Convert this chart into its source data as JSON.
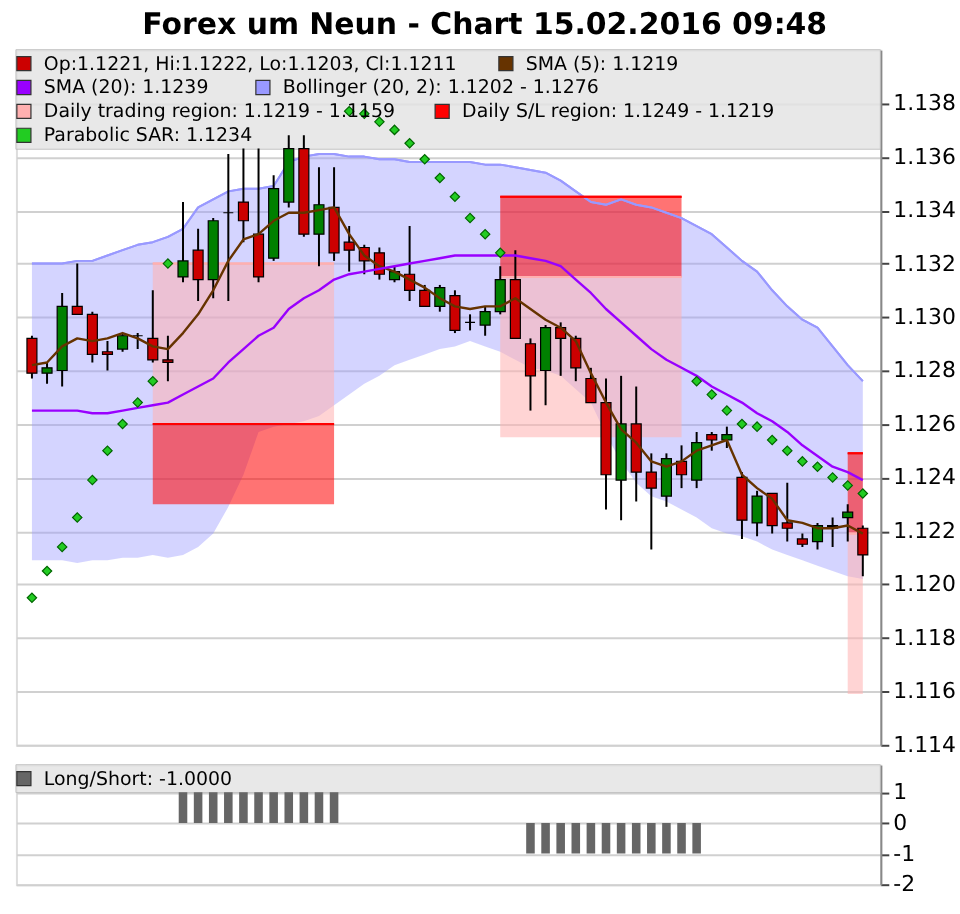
{
  "chart_data": [
    {
      "type": "candlestick",
      "title": "Forex um Neun - Chart 15.02.2016 09:48",
      "categories": [
        null,
        null,
        null,
        null,
        null,
        null,
        null,
        null,
        null,
        null,
        null,
        null,
        null,
        null,
        null,
        null,
        null,
        null,
        null,
        null,
        null,
        null,
        null,
        null,
        null,
        null,
        null,
        null,
        null,
        null,
        null,
        null,
        null,
        null,
        null,
        null,
        null,
        null,
        null,
        null,
        null,
        null,
        null,
        null,
        null,
        null,
        null,
        null,
        null,
        null,
        null,
        null,
        null,
        null,
        null,
        null
      ],
      "ylim": [
        1.114,
        1.14
      ],
      "yticks": [
        1.114,
        1.116,
        1.118,
        {
          "value": 1.12,
          "label": "1.120"
        },
        1.122,
        1.124,
        1.126,
        1.128,
        {
          "value": 1.13,
          "label": "1.130"
        },
        1.132,
        1.134,
        1.136,
        1.138
      ],
      "grid": "y",
      "legend": "top",
      "tick_labels": "y",
      "series": [
        {
          "name": "Op:1.1221, Hi:1.1222, Lo:1.1203, Cl:1.1211",
          "type": "candlestick",
          "color": "#cc0000",
          "colors": [
            "#cc0000",
            "#008000",
            "#008000",
            "#cc0000",
            "#cc0000",
            "#cc0000",
            "#008000",
            "#000000",
            "#cc0000",
            "#cc0000",
            "#008000",
            "#cc0000",
            "#008000",
            "#000000",
            "#cc0000",
            "#cc0000",
            "#008000",
            "#008000",
            "#cc0000",
            "#008000",
            "#cc0000",
            "#cc0000",
            "#cc0000",
            "#cc0000",
            "#008000",
            "#cc0000",
            "#cc0000",
            "#008000",
            "#cc0000",
            "#000000",
            "#008000",
            "#008000",
            "#cc0000",
            "#cc0000",
            "#008000",
            "#cc0000",
            "#cc0000",
            "#cc0000",
            "#cc0000",
            "#008000",
            "#cc0000",
            "#cc0000",
            "#008000",
            "#cc0000",
            "#008000",
            "#cc0000",
            "#008000",
            "#cc0000",
            "#008000",
            "#cc0000",
            "#cc0000",
            "#cc0000",
            "#008000",
            "#000000",
            "#008000",
            "#cc0000"
          ],
          "ohlc": [
            [
              1.1292,
              1.1293,
              1.1277,
              1.1279
            ],
            [
              1.1279,
              1.1283,
              1.1275,
              1.1281
            ],
            [
              1.128,
              1.1309,
              1.1274,
              1.1304
            ],
            [
              1.1304,
              1.132,
              1.1301,
              1.1301
            ],
            [
              1.1301,
              1.1302,
              1.1283,
              1.1286
            ],
            [
              1.1287,
              1.1291,
              1.128,
              1.1286
            ],
            [
              1.1288,
              1.1294,
              1.1287,
              1.1293
            ],
            [
              1.1293,
              1.1294,
              1.1288,
              1.1293
            ],
            [
              1.1292,
              1.131,
              1.1283,
              1.1284
            ],
            [
              1.1284,
              1.1293,
              1.1276,
              1.1283
            ],
            [
              1.1315,
              1.1343,
              1.1313,
              1.1321
            ],
            [
              1.1325,
              1.1333,
              1.1306,
              1.1314
            ],
            [
              1.1314,
              1.1337,
              1.1307,
              1.1336
            ],
            [
              1.1339,
              1.1361,
              1.1306,
              1.1339
            ],
            [
              1.1343,
              1.1363,
              1.1328,
              1.1336
            ],
            [
              1.1331,
              1.1363,
              1.1313,
              1.1315
            ],
            [
              1.1322,
              1.1353,
              1.1321,
              1.1348
            ],
            [
              1.1343,
              1.1368,
              1.1341,
              1.1363
            ],
            [
              1.1363,
              1.1368,
              1.133,
              1.1331
            ],
            [
              1.1331,
              1.1356,
              1.1319,
              1.1342
            ],
            [
              1.1341,
              1.1356,
              1.1321,
              1.1324
            ],
            [
              1.1328,
              1.1334,
              1.1317,
              1.1325
            ],
            [
              1.1326,
              1.1327,
              1.1316,
              1.1321
            ],
            [
              1.1324,
              1.1326,
              1.1314,
              1.1316
            ],
            [
              1.1314,
              1.1319,
              1.1313,
              1.1317
            ],
            [
              1.1316,
              1.1334,
              1.1306,
              1.131
            ],
            [
              1.131,
              1.1312,
              1.1304,
              1.1304
            ],
            [
              1.1304,
              1.1312,
              1.1302,
              1.1311
            ],
            [
              1.1308,
              1.131,
              1.1294,
              1.1295
            ],
            [
              1.1298,
              1.1301,
              1.1295,
              1.1298
            ],
            [
              1.1297,
              1.1304,
              1.1293,
              1.1302
            ],
            [
              1.1302,
              1.1319,
              1.1301,
              1.1314
            ],
            [
              1.1314,
              1.1325,
              1.1292,
              1.1292
            ],
            [
              1.129,
              1.1292,
              1.1265,
              1.1278
            ],
            [
              1.128,
              1.1297,
              1.1267,
              1.1296
            ],
            [
              1.1296,
              1.1298,
              1.1278,
              1.1292
            ],
            [
              1.1292,
              1.1293,
              1.1276,
              1.1281
            ],
            [
              1.1277,
              1.1281,
              1.1268,
              1.1268
            ],
            [
              1.1268,
              1.1277,
              1.1228,
              1.1241
            ],
            [
              1.1239,
              1.1278,
              1.1224,
              1.126
            ],
            [
              1.126,
              1.1274,
              1.1231,
              1.1242
            ],
            [
              1.1242,
              1.1249,
              1.1213,
              1.1236
            ],
            [
              1.1233,
              1.1249,
              1.1229,
              1.1247
            ],
            [
              1.1246,
              1.1252,
              1.1236,
              1.1241
            ],
            [
              1.1239,
              1.1257,
              1.1236,
              1.1253
            ],
            [
              1.1256,
              1.1257,
              1.125,
              1.1254
            ],
            [
              1.1254,
              1.1259,
              1.1251,
              1.1256
            ],
            [
              1.124,
              1.1242,
              1.1217,
              1.1224
            ],
            [
              1.1223,
              1.1235,
              1.1218,
              1.1233
            ],
            [
              1.1234,
              1.1234,
              1.1219,
              1.1222
            ],
            [
              1.1223,
              1.1238,
              1.1216,
              1.1221
            ],
            [
              1.1217,
              1.1219,
              1.1214,
              1.1215
            ],
            [
              1.1216,
              1.1223,
              1.1213,
              1.1222
            ],
            [
              1.1222,
              1.1225,
              1.1214,
              1.1221
            ],
            [
              1.1225,
              1.123,
              1.1216,
              1.1227
            ],
            [
              1.1221,
              1.1222,
              1.1203,
              1.1211
            ]
          ]
        },
        {
          "name": "SMA (5): 1.1219",
          "type": "line",
          "color": "#663300",
          "line_style": "solid",
          "values": [
            1.1282,
            1.1283,
            1.1289,
            1.1292,
            1.1291,
            1.1292,
            1.1294,
            1.1292,
            1.1289,
            1.1288,
            1.1294,
            1.1301,
            1.131,
            1.1321,
            1.1329,
            1.1331,
            1.1336,
            1.1339,
            1.1339,
            1.134,
            1.1341,
            1.1331,
            1.1323,
            1.1319,
            1.1317,
            1.1314,
            1.1311,
            1.1307,
            1.1304,
            1.1303,
            1.1304,
            1.1304,
            1.1307,
            1.1303,
            1.1299,
            1.1296,
            1.1291,
            1.1279,
            1.1268,
            1.1258,
            1.1253,
            1.1246,
            1.1244,
            1.1246,
            1.125,
            1.1252,
            1.1254,
            1.1241,
            1.1236,
            1.1232,
            1.1224,
            1.1223,
            1.1221,
            1.1221,
            1.1222,
            1.1219
          ]
        },
        {
          "name": "SMA (20): 1.1239",
          "type": "line",
          "color": "#9900ff",
          "line_style": "solid",
          "values": [
            1.1265,
            1.1265,
            1.1265,
            1.1265,
            1.1264,
            1.1264,
            1.1265,
            1.1266,
            1.1267,
            1.1268,
            1.1271,
            1.1274,
            1.1277,
            1.1283,
            1.1288,
            1.1293,
            1.1296,
            1.1303,
            1.1307,
            1.131,
            1.1314,
            1.1316,
            1.1317,
            1.1318,
            1.1319,
            1.132,
            1.1321,
            1.1322,
            1.1323,
            1.1323,
            1.1323,
            1.1323,
            1.1323,
            1.1322,
            1.1321,
            1.1319,
            1.1314,
            1.1309,
            1.1303,
            1.1298,
            1.1293,
            1.1288,
            1.1284,
            1.1281,
            1.1278,
            1.1274,
            1.1271,
            1.1268,
            1.1264,
            1.1261,
            1.1257,
            1.1252,
            1.1248,
            1.1244,
            1.1242,
            1.1239
          ]
        },
        {
          "name": "Bollinger (20, 2): 1.1202 - 1.1276",
          "type": "line",
          "color": "#9999ff",
          "values": [
            1.132,
            1.132,
            1.132,
            1.1321,
            1.1321,
            1.1323,
            1.1325,
            1.1327,
            1.1328,
            1.133,
            1.1333,
            1.1341,
            1.1344,
            1.1347,
            1.1348,
            1.1348,
            1.1349,
            1.1358,
            1.136,
            1.1361,
            1.1361,
            1.136,
            1.136,
            1.1359,
            1.1359,
            1.1358,
            1.1358,
            1.1358,
            1.1358,
            1.1358,
            1.1357,
            1.1357,
            1.1356,
            1.1355,
            1.1354,
            1.1351,
            1.1347,
            1.1343,
            1.1342,
            1.1344,
            1.1342,
            1.1341,
            1.1339,
            1.1337,
            1.1334,
            1.1331,
            1.1326,
            1.1321,
            1.1317,
            1.131,
            1.1304,
            1.1299,
            1.1296,
            1.1289,
            1.1282,
            1.1276
          ],
          "upper": [
            1.132,
            1.132,
            1.132,
            1.1321,
            1.1321,
            1.1323,
            1.1325,
            1.1327,
            1.1328,
            1.133,
            1.1333,
            1.1341,
            1.1344,
            1.1347,
            1.1348,
            1.1348,
            1.1349,
            1.1358,
            1.136,
            1.1361,
            1.1361,
            1.136,
            1.136,
            1.1359,
            1.1359,
            1.1358,
            1.1358,
            1.1358,
            1.1358,
            1.1358,
            1.1357,
            1.1357,
            1.1356,
            1.1355,
            1.1354,
            1.1351,
            1.1347,
            1.1343,
            1.1342,
            1.1344,
            1.1342,
            1.1341,
            1.1339,
            1.1337,
            1.1334,
            1.1331,
            1.1326,
            1.1321,
            1.1317,
            1.131,
            1.1304,
            1.1299,
            1.1296,
            1.1289,
            1.1282,
            1.1276
          ],
          "lower": [
            1.1209,
            1.1209,
            1.1209,
            1.1208,
            1.1209,
            1.1209,
            1.121,
            1.121,
            1.1211,
            1.121,
            1.1211,
            1.1214,
            1.1219,
            1.1229,
            1.1241,
            1.1257,
            1.1259,
            1.126,
            1.1261,
            1.1263,
            1.1267,
            1.1271,
            1.1275,
            1.1278,
            1.1282,
            1.1284,
            1.1286,
            1.1288,
            1.1289,
            1.1291,
            1.1289,
            1.1287,
            1.1284,
            1.1281,
            1.128,
            1.1278,
            1.1273,
            1.1268,
            1.1256,
            1.1246,
            1.1238,
            1.1233,
            1.1231,
            1.1228,
            1.1225,
            1.1221,
            1.1219,
            1.1218,
            1.1216,
            1.1213,
            1.1211,
            1.1209,
            1.1207,
            1.1205,
            1.1203,
            1.1202
          ]
        },
        {
          "name": "Daily trading region: 1.1219 - 1.1159",
          "type": "line",
          "color": "#ffb0b0",
          "values": [
            null,
            null,
            null,
            null,
            null,
            null,
            null,
            null,
            1.132,
            1.132,
            1.132,
            1.132,
            1.132,
            1.132,
            1.132,
            1.132,
            1.132,
            1.132,
            1.132,
            1.132,
            1.132,
            null,
            null,
            null,
            null,
            null,
            null,
            null,
            null,
            null,
            null,
            1.1315,
            1.1315,
            1.1315,
            1.1315,
            1.1315,
            1.1315,
            1.1315,
            1.1315,
            1.1315,
            1.1315,
            1.1315,
            1.1315,
            1.1315,
            null,
            null,
            null,
            null,
            null,
            null,
            null,
            null,
            null,
            null,
            1.1219,
            1.1219
          ],
          "upper": [
            null,
            null,
            null,
            null,
            null,
            null,
            null,
            null,
            1.132,
            1.132,
            1.132,
            1.132,
            1.132,
            1.132,
            1.132,
            1.132,
            1.132,
            1.132,
            1.132,
            1.132,
            1.132,
            null,
            null,
            null,
            null,
            null,
            null,
            null,
            null,
            null,
            null,
            1.1315,
            1.1315,
            1.1315,
            1.1315,
            1.1315,
            1.1315,
            1.1315,
            1.1315,
            1.1315,
            1.1315,
            1.1315,
            1.1315,
            1.1315,
            null,
            null,
            null,
            null,
            null,
            null,
            null,
            null,
            null,
            null,
            1.1219,
            1.1219
          ],
          "lower": [
            null,
            null,
            null,
            null,
            null,
            null,
            null,
            null,
            1.126,
            1.126,
            1.126,
            1.126,
            1.126,
            1.126,
            1.126,
            1.126,
            1.126,
            1.126,
            1.126,
            1.126,
            1.126,
            null,
            null,
            null,
            null,
            null,
            null,
            null,
            null,
            null,
            null,
            1.1255,
            1.1255,
            1.1255,
            1.1255,
            1.1255,
            1.1255,
            1.1255,
            1.1255,
            1.1255,
            1.1255,
            1.1255,
            1.1255,
            1.1255,
            null,
            null,
            null,
            null,
            null,
            null,
            null,
            null,
            null,
            null,
            1.1159,
            1.1159
          ]
        },
        {
          "name": "Daily S/L region: 1.1249 - 1.1219",
          "type": "line",
          "color": "#ff0000",
          "values": [
            null,
            null,
            null,
            null,
            null,
            null,
            null,
            null,
            1.126,
            1.126,
            1.126,
            1.126,
            1.126,
            1.126,
            1.126,
            1.126,
            1.126,
            1.126,
            1.126,
            1.126,
            1.126,
            null,
            null,
            null,
            null,
            null,
            null,
            null,
            null,
            null,
            null,
            1.1345,
            1.1345,
            1.1345,
            1.1345,
            1.1345,
            1.1345,
            1.1345,
            1.1345,
            1.1345,
            1.1345,
            1.1345,
            1.1345,
            1.1345,
            null,
            null,
            null,
            null,
            null,
            null,
            null,
            null,
            null,
            null,
            1.1249,
            1.1249
          ],
          "upper": [
            null,
            null,
            null,
            null,
            null,
            null,
            null,
            null,
            1.126,
            1.126,
            1.126,
            1.126,
            1.126,
            1.126,
            1.126,
            1.126,
            1.126,
            1.126,
            1.126,
            1.126,
            1.126,
            null,
            null,
            null,
            null,
            null,
            null,
            null,
            null,
            null,
            null,
            1.1345,
            1.1345,
            1.1345,
            1.1345,
            1.1345,
            1.1345,
            1.1345,
            1.1345,
            1.1345,
            1.1345,
            1.1345,
            1.1345,
            1.1345,
            null,
            null,
            null,
            null,
            null,
            null,
            null,
            null,
            null,
            null,
            1.1249,
            1.1249
          ],
          "lower": [
            null,
            null,
            null,
            null,
            null,
            null,
            null,
            null,
            1.123,
            1.123,
            1.123,
            1.123,
            1.123,
            1.123,
            1.123,
            1.123,
            1.123,
            1.123,
            1.123,
            1.123,
            1.123,
            null,
            null,
            null,
            null,
            null,
            null,
            null,
            null,
            null,
            null,
            1.1315,
            1.1315,
            1.1315,
            1.1315,
            1.1315,
            1.1315,
            1.1315,
            1.1315,
            1.1315,
            1.1315,
            1.1315,
            1.1315,
            1.1315,
            null,
            null,
            null,
            null,
            null,
            null,
            null,
            null,
            null,
            null,
            1.1219,
            1.1219
          ]
        },
        {
          "name": "Parabolic SAR: 1.1234",
          "type": "scatter",
          "color": "#22cc22",
          "marker": "diamond",
          "values": [
            1.1195,
            1.1205,
            1.1214,
            1.1225,
            1.1239,
            1.125,
            1.126,
            1.1268,
            1.1276,
            1.132,
            null,
            null,
            null,
            null,
            null,
            null,
            null,
            null,
            null,
            null,
            null,
            1.1377,
            1.1376,
            1.1373,
            1.137,
            1.1365,
            1.1359,
            1.1352,
            1.1345,
            1.1337,
            1.1331,
            1.1324,
            null,
            null,
            null,
            null,
            null,
            null,
            null,
            null,
            null,
            null,
            null,
            null,
            1.1276,
            1.1271,
            1.1265,
            1.126,
            1.1259,
            1.1254,
            1.125,
            1.1246,
            1.1244,
            1.124,
            1.1237,
            1.1234
          ]
        }
      ]
    },
    {
      "type": "bar",
      "categories": [
        null,
        null,
        null,
        null,
        null,
        null,
        null,
        null,
        null,
        null,
        null,
        null,
        null,
        null,
        null,
        null,
        null,
        null,
        null,
        null,
        null,
        null,
        null,
        null,
        null,
        null,
        null,
        null,
        null,
        null,
        null,
        null,
        null,
        null,
        null,
        null,
        null,
        null,
        null,
        null,
        null,
        null,
        null,
        null,
        null,
        null,
        null,
        null,
        null,
        null,
        null,
        null,
        null,
        null,
        null,
        null
      ],
      "ylim": [
        -2,
        1.9
      ],
      "yticks": [
        1,
        0,
        -1,
        -2
      ],
      "grid": "y",
      "legend": "top",
      "tick_labels": "y",
      "series": [
        {
          "name": "Long/Short: -1.0000",
          "color": "#666666",
          "values": [
            null,
            null,
            null,
            null,
            null,
            null,
            null,
            null,
            null,
            null,
            1,
            1,
            1,
            1,
            1,
            1,
            1,
            1,
            1,
            1,
            1,
            null,
            null,
            null,
            null,
            null,
            null,
            null,
            null,
            null,
            null,
            null,
            null,
            -1,
            -1,
            -1,
            -1,
            -1,
            -1,
            -1,
            -1,
            -1,
            -1,
            -1,
            -1,
            null,
            null,
            null,
            null,
            null,
            null,
            null,
            null,
            null,
            null,
            null
          ]
        }
      ]
    }
  ]
}
